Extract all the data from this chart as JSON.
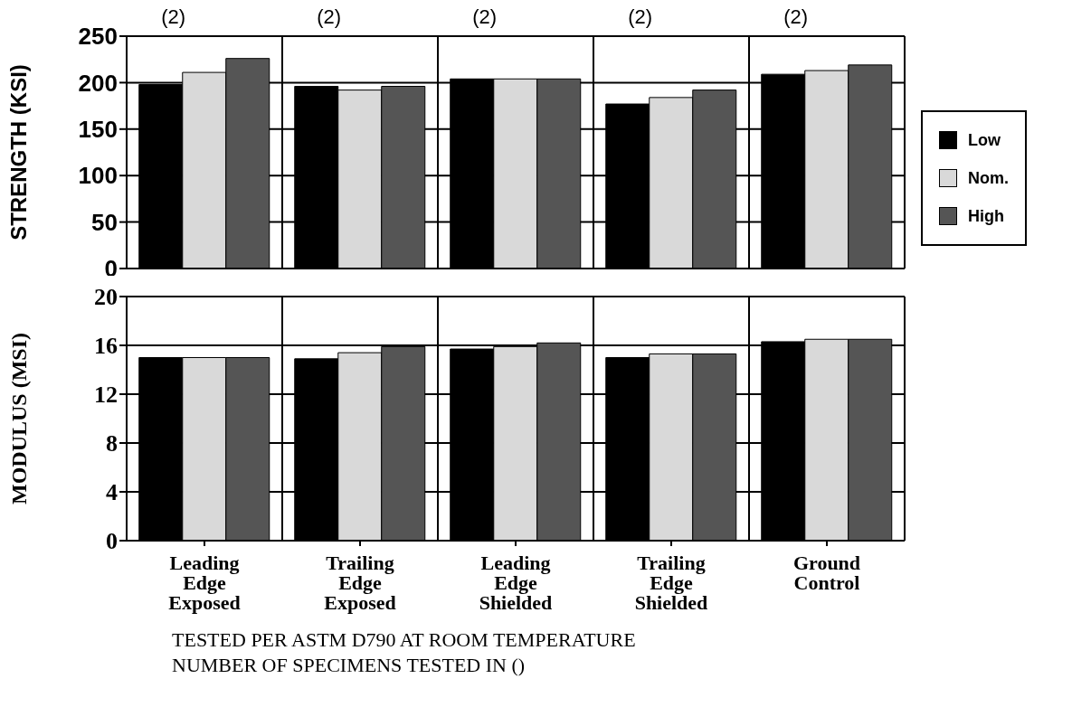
{
  "chart_data": [
    {
      "type": "bar",
      "ylabel": "STRENGTH  (KSI)",
      "categories": [
        null,
        null,
        null,
        null,
        null
      ],
      "series": [
        {
          "name": "Low",
          "color": "#000000",
          "values": [
            198,
            196,
            204,
            177,
            209
          ]
        },
        {
          "name": "Nom.",
          "color": "#d9d9d9",
          "values": [
            211,
            192,
            204,
            184,
            213
          ]
        },
        {
          "name": "High",
          "color": "#555555",
          "values": [
            226,
            196,
            204,
            192,
            219
          ]
        }
      ],
      "ylim": [
        0,
        250
      ],
      "yticks": [
        0,
        50,
        100,
        150,
        200,
        250
      ],
      "grid": true,
      "legend": "right",
      "tick_labels": "y",
      "annotations": [
        "(2)",
        "(2)",
        "(2)",
        "(2)",
        "(2)"
      ]
    },
    {
      "type": "bar",
      "ylabel": "MODULUS  (MSI)",
      "categories": [
        "Leading Edge Exposed",
        "Trailing Edge Exposed",
        "Leading Edge Shielded",
        "Trailing Edge Shielded",
        "Ground Control"
      ],
      "series": [
        {
          "color": "#000000",
          "values": [
            15.0,
            14.9,
            15.7,
            15.0,
            16.3
          ]
        },
        {
          "color": "#d9d9d9",
          "values": [
            15.0,
            15.4,
            15.9,
            15.3,
            16.5
          ]
        },
        {
          "color": "#555555",
          "values": [
            15.0,
            15.9,
            16.2,
            15.3,
            16.5
          ]
        }
      ],
      "ylim": [
        0,
        20
      ],
      "yticks": [
        0,
        4,
        8,
        12,
        16,
        20
      ],
      "grid": true,
      "annotations": [
        "TESTED PER ASTM D790 AT ROOM TEMPERATURE",
        "NUMBER OF SPECIMENS TESTED IN ()"
      ]
    }
  ]
}
